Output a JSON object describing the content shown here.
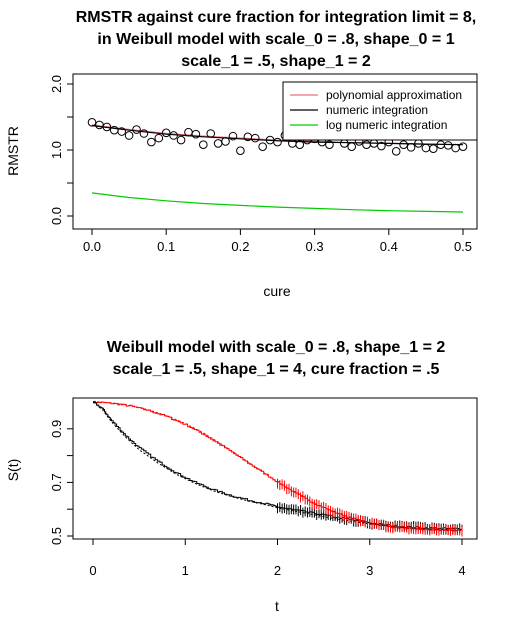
{
  "chart_data": [
    {
      "type": "scatter",
      "title_lines": [
        "RMSTR against cure fraction for integration limit = 8,",
        "in Weibull model with scale_0 = .8, shape_0 = 1",
        "scale_1 = .5, shape_1 = 2"
      ],
      "xlabel": "cure",
      "ylabel": "RMSTR",
      "xlim": [
        0,
        0.5
      ],
      "ylim": [
        0,
        2
      ],
      "x_ticks": [
        "0.0",
        "0.1",
        "0.2",
        "0.3",
        "0.4",
        "0.5"
      ],
      "y_ticks": [
        "0.0",
        "1.0",
        "2.0"
      ],
      "grid": false,
      "legend_position": "top-right",
      "legend": [
        {
          "label": "polynomial approximation",
          "color": "#e8737a"
        },
        {
          "label": "numeric integration",
          "color": "#000000"
        },
        {
          "label": "log numeric integration",
          "color": "#00cc00"
        }
      ],
      "points": {
        "x": [
          0.0,
          0.01,
          0.02,
          0.03,
          0.04,
          0.05,
          0.06,
          0.07,
          0.08,
          0.09,
          0.1,
          0.11,
          0.12,
          0.13,
          0.14,
          0.15,
          0.16,
          0.17,
          0.18,
          0.19,
          0.2,
          0.21,
          0.22,
          0.23,
          0.24,
          0.25,
          0.26,
          0.27,
          0.28,
          0.29,
          0.3,
          0.31,
          0.32,
          0.33,
          0.34,
          0.35,
          0.36,
          0.37,
          0.38,
          0.39,
          0.4,
          0.41,
          0.42,
          0.43,
          0.44,
          0.45,
          0.46,
          0.47,
          0.48,
          0.49,
          0.5
        ],
        "y": [
          1.42,
          1.38,
          1.35,
          1.3,
          1.28,
          1.22,
          1.31,
          1.25,
          1.12,
          1.18,
          1.26,
          1.22,
          1.15,
          1.27,
          1.24,
          1.08,
          1.25,
          1.1,
          1.13,
          1.21,
          0.99,
          1.2,
          1.18,
          1.05,
          1.15,
          1.12,
          1.22,
          1.1,
          1.08,
          1.15,
          1.17,
          1.12,
          1.08,
          1.22,
          1.1,
          1.05,
          1.13,
          1.08,
          1.1,
          1.06,
          1.12,
          0.98,
          1.08,
          1.04,
          1.1,
          1.03,
          1.02,
          1.08,
          1.07,
          1.03,
          1.05
        ]
      },
      "series": [
        {
          "name": "polynomial approximation",
          "color": "#e8737a",
          "x": [
            0,
            0.05,
            0.1,
            0.15,
            0.2,
            0.25,
            0.3,
            0.35,
            0.4,
            0.45,
            0.5
          ],
          "y": [
            1.38,
            1.31,
            1.25,
            1.21,
            1.18,
            1.15,
            1.13,
            1.11,
            1.1,
            1.09,
            1.08
          ]
        },
        {
          "name": "numeric integration",
          "color": "#000000",
          "x": [
            0,
            0.05,
            0.1,
            0.15,
            0.2,
            0.25,
            0.3,
            0.35,
            0.4,
            0.45,
            0.5
          ],
          "y": [
            1.37,
            1.3,
            1.24,
            1.2,
            1.17,
            1.14,
            1.12,
            1.11,
            1.1,
            1.09,
            1.08
          ]
        },
        {
          "name": "log numeric integration",
          "color": "#00cc00",
          "x": [
            0,
            0.05,
            0.1,
            0.15,
            0.2,
            0.25,
            0.3,
            0.35,
            0.4,
            0.45,
            0.5
          ],
          "y": [
            0.35,
            0.28,
            0.23,
            0.19,
            0.16,
            0.135,
            0.115,
            0.095,
            0.08,
            0.07,
            0.06
          ]
        }
      ]
    },
    {
      "type": "line",
      "title_lines": [
        "Weibull model with scale_0 = .8, shape_1 = 2",
        "scale_1 = .5, shape_1 = 4, cure fraction = .5"
      ],
      "xlabel": "t",
      "ylabel": "S(t)",
      "xlim": [
        0,
        4
      ],
      "ylim": [
        0.5,
        1
      ],
      "x_ticks": [
        "0",
        "1",
        "2",
        "3",
        "4"
      ],
      "y_ticks": [
        "0.5",
        "0.7",
        "0.9"
      ],
      "grid": false,
      "series": [
        {
          "color": "#ff0000",
          "style": "step",
          "x": [
            0,
            0.1,
            0.25,
            0.4,
            0.6,
            0.8,
            1.0,
            1.2,
            1.4,
            1.6,
            1.8,
            2.0,
            2.2,
            2.4,
            2.6,
            2.8,
            3.0,
            3.2,
            3.4,
            3.6,
            3.8,
            4.0
          ],
          "y": [
            1.0,
            0.998,
            0.993,
            0.985,
            0.968,
            0.945,
            0.915,
            0.878,
            0.835,
            0.79,
            0.745,
            0.7,
            0.658,
            0.62,
            0.59,
            0.565,
            0.548,
            0.535,
            0.528,
            0.524,
            0.522,
            0.52
          ]
        },
        {
          "color": "#ff0000",
          "style": "dotted",
          "x": [
            0,
            0.1,
            0.25,
            0.4,
            0.6,
            0.8,
            1.0,
            1.2,
            1.4,
            1.6,
            1.8,
            2.0,
            2.2,
            2.4,
            2.6,
            2.8,
            3.0,
            3.2,
            3.4,
            3.6,
            3.8,
            4.0
          ],
          "y": [
            1.0,
            0.999,
            0.995,
            0.987,
            0.971,
            0.949,
            0.92,
            0.884,
            0.841,
            0.795,
            0.748,
            0.702,
            0.66,
            0.622,
            0.592,
            0.567,
            0.549,
            0.536,
            0.528,
            0.523,
            0.521,
            0.52
          ]
        },
        {
          "color": "#000000",
          "style": "step",
          "x": [
            0,
            0.1,
            0.2,
            0.35,
            0.5,
            0.7,
            0.9,
            1.1,
            1.3,
            1.5,
            1.7,
            1.9,
            2.0,
            2.2,
            2.4,
            2.6,
            2.8,
            3.0,
            3.2,
            3.4,
            3.6,
            3.8,
            4.0
          ],
          "y": [
            1.0,
            0.975,
            0.93,
            0.875,
            0.828,
            0.778,
            0.735,
            0.7,
            0.672,
            0.65,
            0.632,
            0.618,
            0.608,
            0.596,
            0.584,
            0.572,
            0.56,
            0.548,
            0.54,
            0.534,
            0.53,
            0.528,
            0.527
          ]
        },
        {
          "color": "#000000",
          "style": "dotted",
          "x": [
            0,
            0.1,
            0.2,
            0.35,
            0.5,
            0.7,
            0.9,
            1.1,
            1.3,
            1.5,
            1.7,
            1.9,
            2.0,
            2.2,
            2.4,
            2.6,
            2.8,
            3.0,
            3.2,
            3.4,
            3.6,
            3.8,
            4.0
          ],
          "y": [
            1.0,
            0.972,
            0.926,
            0.87,
            0.822,
            0.773,
            0.731,
            0.697,
            0.669,
            0.647,
            0.629,
            0.614,
            0.605,
            0.592,
            0.579,
            0.566,
            0.555,
            0.545,
            0.537,
            0.531,
            0.527,
            0.524,
            0.522
          ]
        }
      ]
    }
  ]
}
